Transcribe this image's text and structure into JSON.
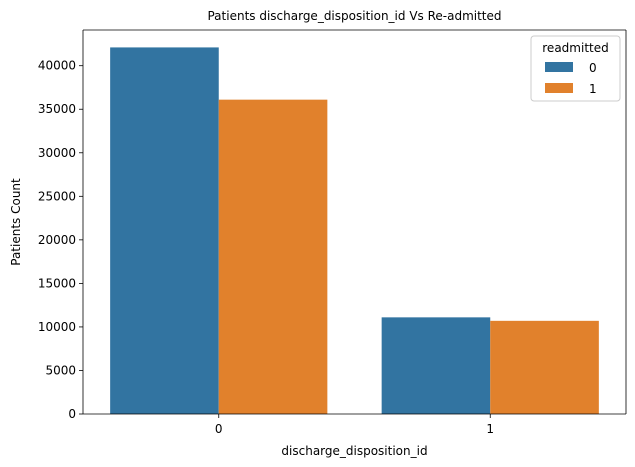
{
  "chart_data": {
    "type": "bar",
    "title": "Patients discharge_disposition_id Vs Re-admitted",
    "xlabel": "discharge_disposition_id",
    "ylabel": "Patients Count",
    "categories": [
      "0",
      "1"
    ],
    "series": [
      {
        "name": "0",
        "color": "#3274a1",
        "values": [
          42100,
          11100
        ]
      },
      {
        "name": "1",
        "color": "#e1812c",
        "values": [
          36100,
          10700
        ]
      }
    ],
    "yticks": [
      0,
      5000,
      10000,
      15000,
      20000,
      25000,
      30000,
      35000,
      40000
    ],
    "ylim": [
      0,
      44100
    ],
    "legend": {
      "title": "readmitted",
      "placement": "top-right"
    },
    "grid": false
  }
}
